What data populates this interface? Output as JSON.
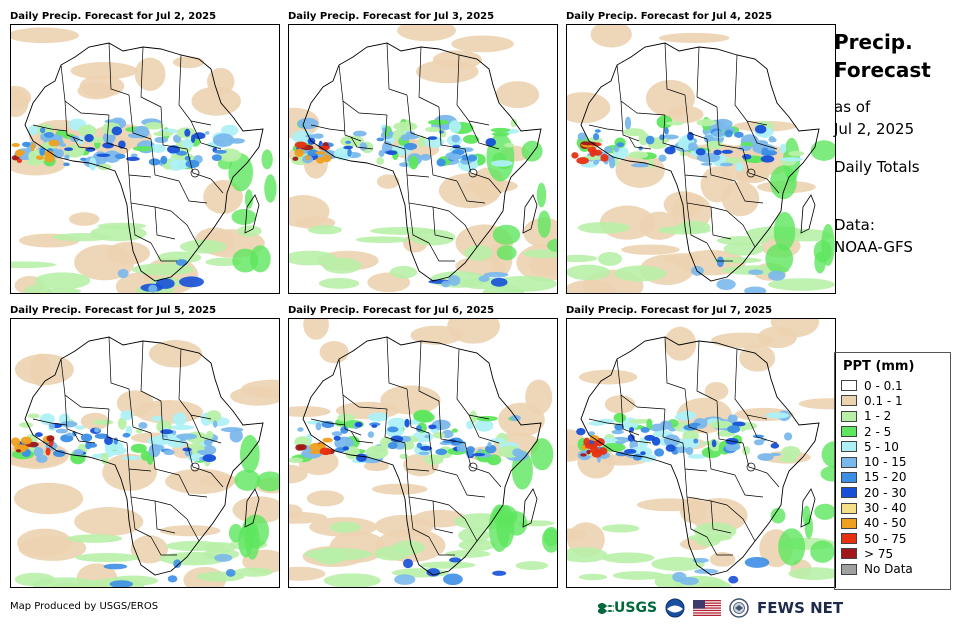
{
  "panels": [
    {
      "title": "Daily Precip. Forecast for Jul 2, 2025"
    },
    {
      "title": "Daily Precip. Forecast for Jul 3, 2025"
    },
    {
      "title": "Daily Precip. Forecast for Jul 4, 2025"
    },
    {
      "title": "Daily Precip. Forecast for Jul 5, 2025"
    },
    {
      "title": "Daily Precip. Forecast for Jul 6, 2025"
    },
    {
      "title": "Daily Precip. Forecast for Jul 7, 2025"
    }
  ],
  "side": {
    "title_line1": "Precip.",
    "title_line2": "Forecast",
    "asof_line1": "as of",
    "asof_line2": "Jul 2, 2025",
    "totals": "Daily Totals",
    "data_line1": "Data:",
    "data_line2": "NOAA-GFS"
  },
  "legend": {
    "title": "PPT (mm)",
    "items": [
      {
        "label": "0 - 0.1",
        "color": "#ffffff"
      },
      {
        "label": "0.1 - 1",
        "color": "#ecd3b0"
      },
      {
        "label": "1 - 2",
        "color": "#b8f0a8"
      },
      {
        "label": "2 - 5",
        "color": "#5ee65e"
      },
      {
        "label": "5 - 10",
        "color": "#aef0f5"
      },
      {
        "label": "10 - 15",
        "color": "#7ab8ec"
      },
      {
        "label": "15 - 20",
        "color": "#3c8ee6"
      },
      {
        "label": "20 - 30",
        "color": "#1650d8"
      },
      {
        "label": "30 - 40",
        "color": "#f5e088"
      },
      {
        "label": "40 - 50",
        "color": "#f0a020"
      },
      {
        "label": "50 - 75",
        "color": "#e83010"
      },
      {
        "label": "> 75",
        "color": "#a01818"
      },
      {
        "label": "No Data",
        "color": "#a0a0a0"
      }
    ]
  },
  "footer": {
    "credit": "Map Produced by USGS/EROS",
    "usgs": "USGS",
    "fews": "FEWS NET"
  }
}
